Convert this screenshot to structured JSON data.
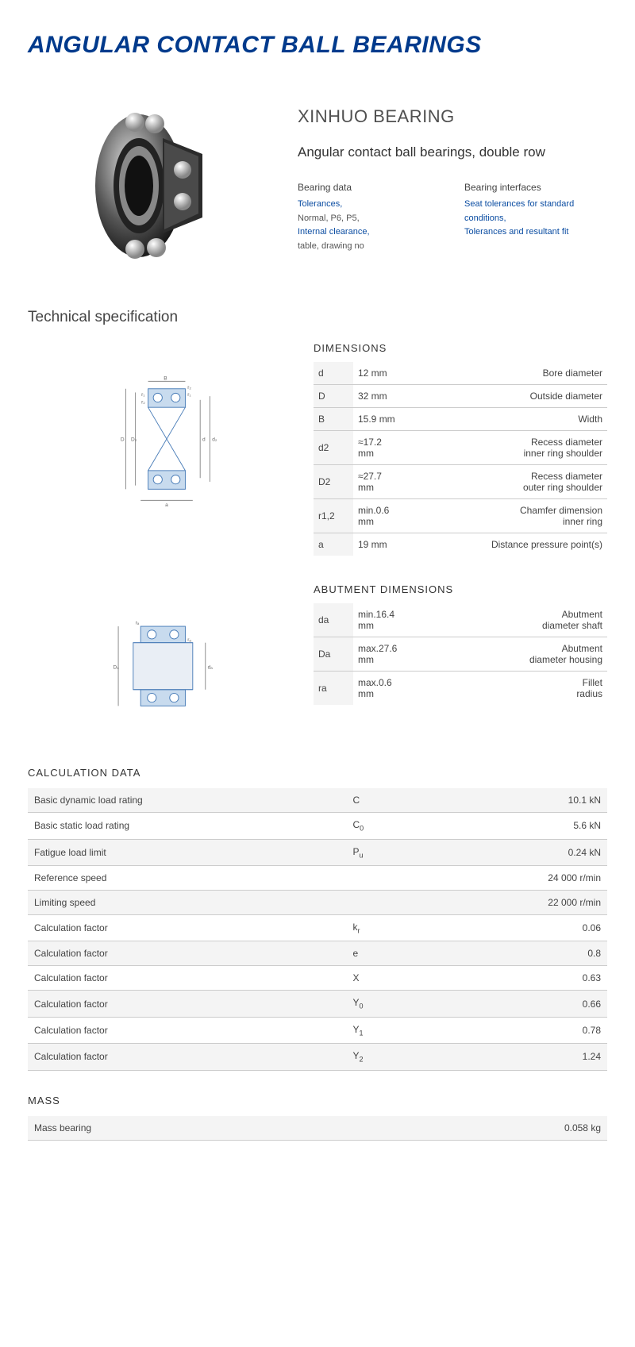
{
  "title": "ANGULAR CONTACT BALL BEARINGS",
  "brand": "XINHUO BEARING",
  "subtitle": "Angular contact ball bearings, double row",
  "meta": {
    "left": {
      "header": "Bearing data",
      "items": [
        {
          "text": "Tolerances,",
          "link": true
        },
        {
          "text": "Normal, P6, P5,",
          "link": false
        },
        {
          "text": "Internal clearance,",
          "link": true
        },
        {
          "text": "table, drawing no",
          "link": false
        }
      ]
    },
    "right": {
      "header": "Bearing interfaces",
      "items": [
        {
          "text": "Seat tolerances for standard conditions,",
          "link": true
        },
        {
          "text": "Tolerances and resultant fit",
          "link": true
        }
      ]
    }
  },
  "tech_spec_title": "Technical specification",
  "dimensions": {
    "header": "DIMENSIONS",
    "rows": [
      {
        "sym": "d",
        "val": "12  mm",
        "desc": "Bore diameter"
      },
      {
        "sym": "D",
        "val": "32  mm",
        "desc": "Outside diameter"
      },
      {
        "sym": "B",
        "val": "15.9  mm",
        "desc": "Width"
      },
      {
        "sym": "d2",
        "val": "≈17.2\nmm",
        "desc": "Recess diameter\ninner ring shoulder"
      },
      {
        "sym": "D2",
        "val": "≈27.7\nmm",
        "desc": "Recess diameter\nouter ring shoulder"
      },
      {
        "sym": "r1,2",
        "val": "min.0.6\nmm",
        "desc": "Chamfer dimension\ninner ring"
      },
      {
        "sym": "a",
        "val": "19  mm",
        "desc": "Distance pressure point(s)"
      }
    ]
  },
  "abutment": {
    "header": "ABUTMENT DIMENSIONS",
    "rows": [
      {
        "sym": "da",
        "val": "min.16.4\nmm",
        "desc": "Abutment\ndiameter shaft"
      },
      {
        "sym": "Da",
        "val": "max.27.6\nmm",
        "desc": "Abutment\ndiameter housing"
      },
      {
        "sym": "ra",
        "val": "max.0.6\nmm",
        "desc": "Fillet\nradius"
      }
    ]
  },
  "calc": {
    "header": "CALCULATION DATA",
    "rows": [
      {
        "label": "Basic dynamic load rating",
        "sym": "C",
        "sub": "",
        "val": "10.1  kN"
      },
      {
        "label": "Basic static load rating",
        "sym": "C",
        "sub": "0",
        "val": "5.6  kN"
      },
      {
        "label": "Fatigue load limit",
        "sym": "P",
        "sub": "u",
        "val": "0.24  kN"
      },
      {
        "label": "Reference speed",
        "sym": "",
        "sub": "",
        "val": "24 000  r/min"
      },
      {
        "label": "Limiting speed",
        "sym": "",
        "sub": "",
        "val": "22 000  r/min"
      },
      {
        "label": "Calculation factor",
        "sym": "k",
        "sub": "r",
        "val": "0.06"
      },
      {
        "label": "Calculation factor",
        "sym": "e",
        "sub": "",
        "val": "0.8"
      },
      {
        "label": "Calculation factor",
        "sym": "X",
        "sub": "",
        "val": "0.63"
      },
      {
        "label": "Calculation factor",
        "sym": "Y",
        "sub": "0",
        "val": "0.66"
      },
      {
        "label": "Calculation factor",
        "sym": "Y",
        "sub": "1",
        "val": "0.78"
      },
      {
        "label": "Calculation factor",
        "sym": "Y",
        "sub": "2",
        "val": "1.24"
      }
    ]
  },
  "mass": {
    "header": "MASS",
    "rows": [
      {
        "label": "Mass bearing",
        "sym": "",
        "sub": "",
        "val": "0.058  kg"
      }
    ]
  },
  "colors": {
    "title": "#003a8c",
    "link": "#0b4da2",
    "text": "#444444",
    "row_alt": "#f4f4f4",
    "border": "#cccccc"
  }
}
